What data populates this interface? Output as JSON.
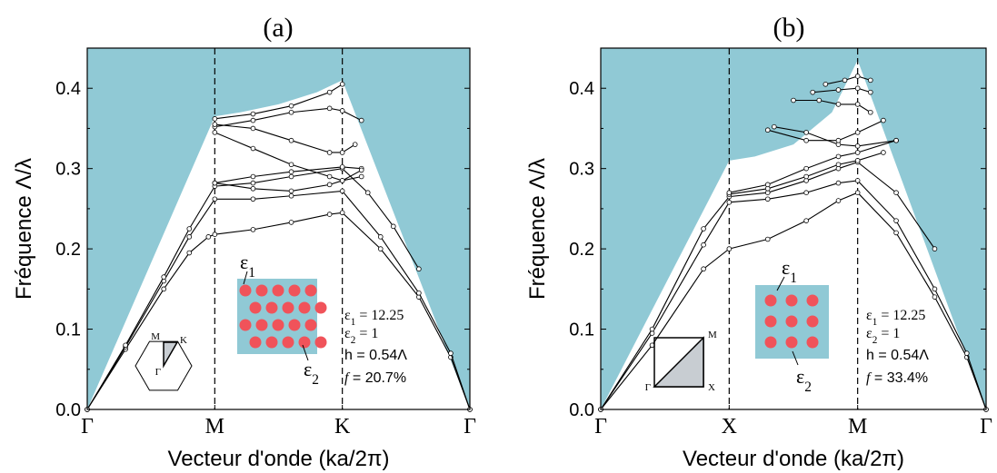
{
  "colors": {
    "light_cone": "#90c9d5",
    "inset_bg": "#90c9d5",
    "rod": "#f0535a",
    "bands": "#000000",
    "zone_fill": "#c8cdd2"
  },
  "chart_data": [
    {
      "panel_label": "(a)",
      "type": "line",
      "xlabel": "Vecteur d'onde (ka/2π)",
      "ylabel": "Fréquence  Λ/λ",
      "ylim": [
        0,
        0.45
      ],
      "xlim": [
        0,
        3
      ],
      "yticks": [
        0.0,
        0.1,
        0.2,
        0.3,
        0.4
      ],
      "ytick_labels": [
        "0.0",
        "0.1",
        "0.2",
        "0.3",
        "0.4"
      ],
      "xticks": [
        0,
        1,
        2,
        3
      ],
      "xtick_labels": [
        "Γ",
        "M",
        "K",
        "Γ"
      ],
      "light_cone_boundary": {
        "x": [
          0,
          1,
          1.2,
          1.5,
          1.8,
          2,
          3
        ],
        "y": [
          0,
          0.365,
          0.37,
          0.38,
          0.395,
          0.41,
          0
        ]
      },
      "bands": [
        {
          "x": [
            0,
            0.3,
            0.6,
            0.8,
            0.95,
            1,
            1.3,
            1.6,
            1.9,
            2,
            2.3,
            2.6,
            2.85,
            3
          ],
          "y": [
            0,
            0.075,
            0.15,
            0.195,
            0.215,
            0.218,
            0.224,
            0.233,
            0.243,
            0.245,
            0.2,
            0.14,
            0.065,
            0
          ]
        },
        {
          "x": [
            0,
            0.3,
            0.6,
            0.8,
            1,
            1.3,
            1.6,
            2,
            2.3,
            2.6,
            2.85,
            3
          ],
          "y": [
            0,
            0.078,
            0.16,
            0.215,
            0.262,
            0.262,
            0.266,
            0.272,
            0.215,
            0.145,
            0.07,
            0
          ]
        },
        {
          "x": [
            0,
            0.3,
            0.6,
            0.8,
            1,
            1.3,
            1.6,
            2,
            2.2,
            2.4,
            2.6
          ],
          "y": [
            0,
            0.08,
            0.165,
            0.225,
            0.278,
            0.282,
            0.29,
            0.3,
            0.27,
            0.228,
            0.175
          ]
        },
        {
          "x": [
            1,
            1.3,
            1.6,
            2,
            2.15
          ],
          "y": [
            0.282,
            0.29,
            0.296,
            0.302,
            0.3
          ]
        },
        {
          "x": [
            1,
            1.3,
            1.6,
            1.9,
            2,
            2.15
          ],
          "y": [
            0.282,
            0.275,
            0.272,
            0.28,
            0.285,
            0.29
          ]
        },
        {
          "x": [
            1,
            1.3,
            1.6,
            1.9,
            2,
            2.15
          ],
          "y": [
            0.345,
            0.325,
            0.305,
            0.29,
            0.285,
            0.298
          ]
        },
        {
          "x": [
            1,
            1.3,
            1.6,
            1.9,
            2,
            2.15
          ],
          "y": [
            0.352,
            0.36,
            0.37,
            0.375,
            0.372,
            0.36
          ]
        },
        {
          "x": [
            1,
            1.3,
            1.6,
            1.9,
            2,
            2.1
          ],
          "y": [
            0.355,
            0.35,
            0.335,
            0.32,
            0.32,
            0.33
          ]
        },
        {
          "x": [
            1,
            1.3,
            1.6,
            1.9,
            2
          ],
          "y": [
            0.362,
            0.368,
            0.378,
            0.395,
            0.405
          ]
        }
      ],
      "parameters": [
        "ε1 = 12.25",
        "ε2 = 1",
        "h = 0.54Λ",
        "f = 20.7%"
      ],
      "inset_labels": {
        "eps1": "ε1",
        "eps2": "ε2",
        "pt_M": "M",
        "pt_K": "K",
        "pt_G": "Γ"
      },
      "lattice": "triangular"
    },
    {
      "panel_label": "(b)",
      "type": "line",
      "xlabel": "Vecteur d'onde (ka/2π)",
      "ylabel": "Fréquence  Λ/λ",
      "ylim": [
        0,
        0.45
      ],
      "xlim": [
        0,
        3
      ],
      "yticks": [
        0.0,
        0.1,
        0.2,
        0.3,
        0.4
      ],
      "ytick_labels": [
        "0.0",
        "0.1",
        "0.2",
        "0.3",
        "0.4"
      ],
      "xticks": [
        0,
        1,
        2,
        3
      ],
      "xtick_labels": [
        "Γ",
        "X",
        "M",
        "Γ"
      ],
      "light_cone_boundary": {
        "x": [
          0,
          1,
          1.2,
          1.5,
          1.8,
          2,
          3
        ],
        "y": [
          0,
          0.31,
          0.315,
          0.33,
          0.37,
          0.435,
          0
        ]
      },
      "bands": [
        {
          "x": [
            0,
            0.4,
            0.8,
            1,
            1.3,
            1.6,
            1.85,
            2,
            2.3,
            2.6,
            2.85,
            3
          ],
          "y": [
            0,
            0.08,
            0.175,
            0.2,
            0.212,
            0.235,
            0.26,
            0.27,
            0.22,
            0.14,
            0.065,
            0
          ]
        },
        {
          "x": [
            0,
            0.4,
            0.8,
            1,
            1.3,
            1.6,
            1.85,
            2,
            2.3,
            2.6,
            2.85,
            3
          ],
          "y": [
            0,
            0.095,
            0.205,
            0.258,
            0.262,
            0.27,
            0.282,
            0.285,
            0.235,
            0.15,
            0.07,
            0
          ]
        },
        {
          "x": [
            0,
            0.4,
            0.8,
            1,
            1.3,
            1.6,
            1.85,
            2,
            2.3,
            2.6
          ],
          "y": [
            0,
            0.1,
            0.225,
            0.265,
            0.27,
            0.285,
            0.3,
            0.308,
            0.27,
            0.2
          ]
        },
        {
          "x": [
            1,
            1.3,
            1.6,
            1.85,
            2,
            2.2
          ],
          "y": [
            0.268,
            0.275,
            0.29,
            0.305,
            0.31,
            0.32
          ]
        },
        {
          "x": [
            1,
            1.3,
            1.6,
            1.85,
            2,
            2.3
          ],
          "y": [
            0.27,
            0.28,
            0.3,
            0.315,
            0.32,
            0.335
          ]
        },
        {
          "x": [
            1.35,
            1.6,
            1.85,
            2,
            2.3
          ],
          "y": [
            0.352,
            0.345,
            0.33,
            0.328,
            0.335
          ]
        },
        {
          "x": [
            1.3,
            1.6,
            1.85,
            2,
            2.2
          ],
          "y": [
            0.348,
            0.335,
            0.335,
            0.345,
            0.36
          ]
        },
        {
          "x": [
            1.5,
            1.7,
            1.85,
            2,
            2.1
          ],
          "y": [
            0.385,
            0.385,
            0.38,
            0.38,
            0.37
          ]
        },
        {
          "x": [
            1.65,
            1.85,
            2,
            2.1
          ],
          "y": [
            0.395,
            0.398,
            0.4,
            0.395
          ]
        },
        {
          "x": [
            1.75,
            1.9,
            2,
            2.1
          ],
          "y": [
            0.405,
            0.41,
            0.415,
            0.41
          ]
        }
      ],
      "parameters": [
        "ε1 = 12.25",
        "ε2 = 1",
        "h = 0.54Λ",
        "f = 33.4%"
      ],
      "inset_labels": {
        "eps1": "ε1",
        "eps2": "ε2",
        "pt_M": "M",
        "pt_X": "X",
        "pt_G": "Γ"
      },
      "lattice": "square"
    }
  ]
}
